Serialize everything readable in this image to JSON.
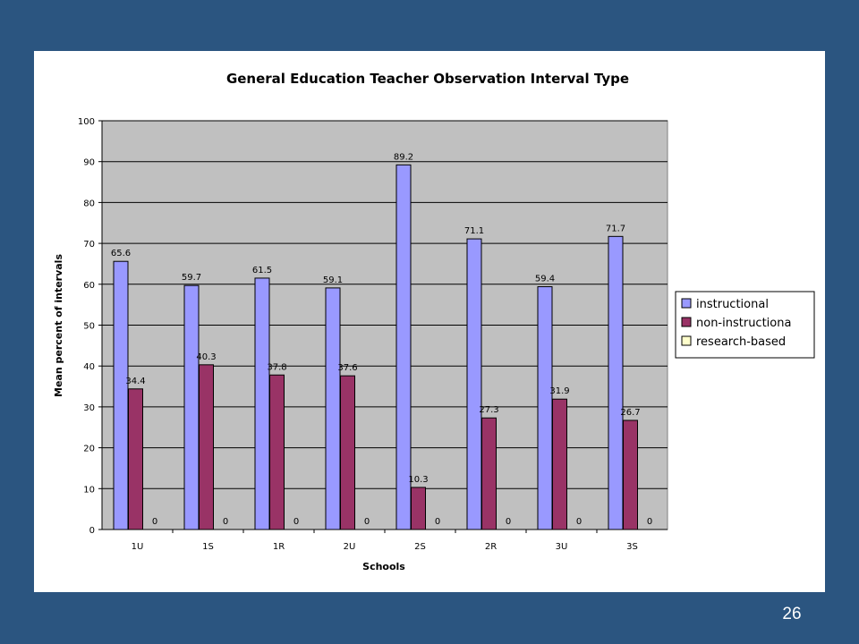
{
  "slide_number": "26",
  "chart_data": {
    "type": "bar",
    "title": "General Education Teacher Observation Interval Type",
    "xlabel": "Schools",
    "ylabel": "Mean percent of intervals",
    "ylim": [
      0,
      100
    ],
    "yticks": [
      0,
      10,
      20,
      30,
      40,
      50,
      60,
      70,
      80,
      90,
      100
    ],
    "grid": true,
    "legend_position": "right",
    "categories": [
      "1U",
      "1S",
      "1R",
      "2U",
      "2S",
      "2R",
      "3U",
      "3S"
    ],
    "series": [
      {
        "name": "instructional",
        "color": "#9999ff",
        "values": [
          65.6,
          59.7,
          61.5,
          59.1,
          89.2,
          71.1,
          59.4,
          71.7
        ],
        "labels": [
          "65.6",
          "59.7",
          "61.5",
          "59.1",
          "89.2",
          "71.1",
          "59.4",
          "71.7"
        ]
      },
      {
        "name": "non-instructiona",
        "color": "#993366",
        "values": [
          34.4,
          40.3,
          37.8,
          37.6,
          10.3,
          27.3,
          31.9,
          26.7
        ],
        "labels": [
          "34.4",
          "40.3",
          "37.8",
          "37.6",
          "10.3",
          "27.3",
          "31.9",
          "26.7"
        ]
      },
      {
        "name": "research-based",
        "color": "#ffffcc",
        "values": [
          0,
          0,
          0,
          0,
          0,
          0,
          0,
          0
        ],
        "labels": [
          "0",
          "0",
          "0",
          "0",
          "0",
          "0",
          "0",
          "0"
        ]
      }
    ],
    "plot_background": "#c0c0c0"
  }
}
